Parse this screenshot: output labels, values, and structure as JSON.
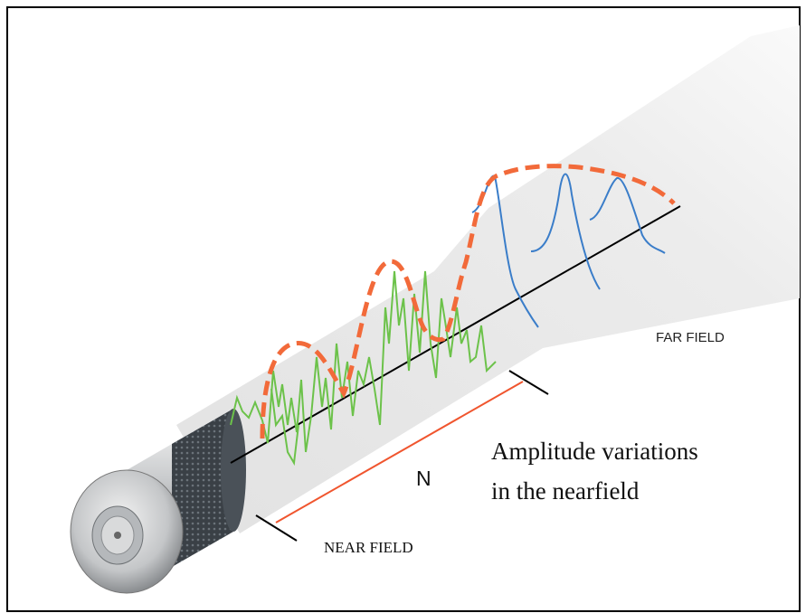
{
  "labels": {
    "far_field": "FAR FIELD",
    "n": "N",
    "annotation": [
      "Amplitude variations",
      "in the nearfield"
    ],
    "near_field": "NEAR FIELD"
  }
}
